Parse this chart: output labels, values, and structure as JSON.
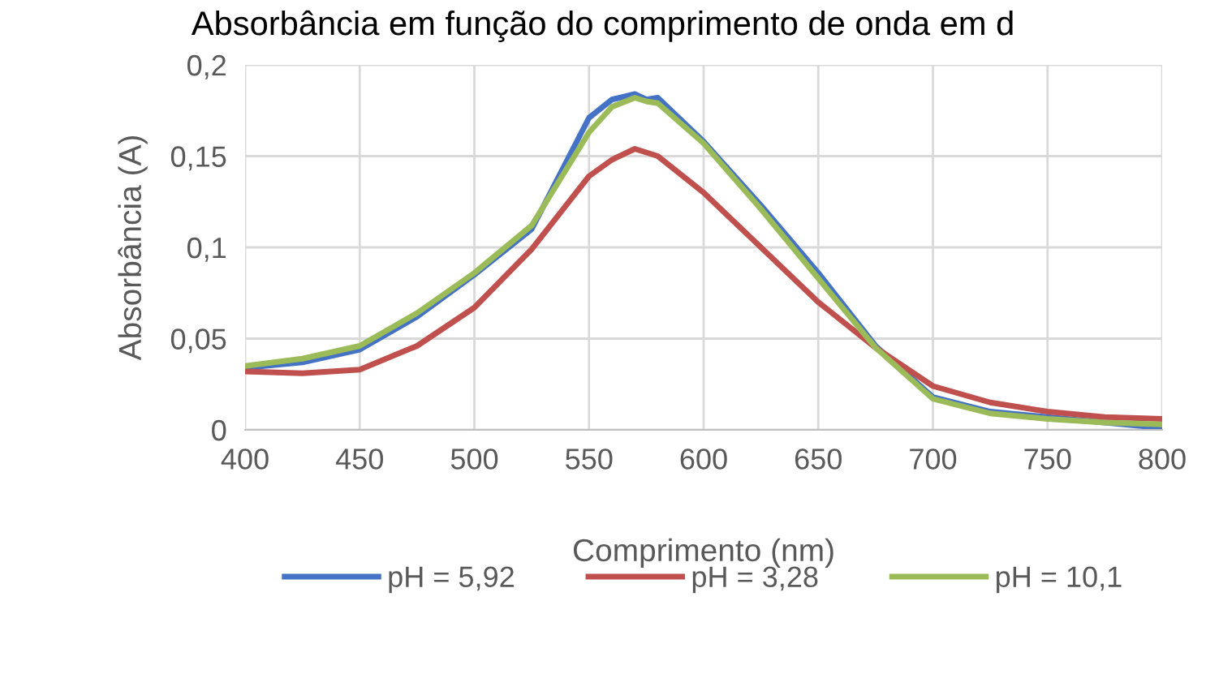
{
  "chart_data": {
    "type": "line",
    "title": "Absorbância em função do comprimento de onda em d",
    "xlabel": "Comprimento (nm)",
    "ylabel": "Absorbância (A)",
    "xlim": [
      400,
      800
    ],
    "xticks": [
      400,
      450,
      500,
      550,
      600,
      650,
      700,
      750,
      800
    ],
    "ylim": [
      0,
      0.2
    ],
    "yticks": [
      {
        "value": 0,
        "label": "0"
      },
      {
        "value": 0.05,
        "label": "0,05"
      },
      {
        "value": 0.1,
        "label": "0,1"
      },
      {
        "value": 0.15,
        "label": "0,15"
      },
      {
        "value": 0.2,
        "label": "0,2"
      }
    ],
    "grid": true,
    "legend": "bottom",
    "marker": "none",
    "line_style": "solid",
    "x": [
      400,
      425,
      450,
      475,
      500,
      525,
      550,
      560,
      570,
      575,
      580,
      600,
      625,
      650,
      675,
      700,
      725,
      750,
      775,
      800
    ],
    "series": [
      {
        "name": "pH = 5,92",
        "color": "#4472c4",
        "values": [
          0.034,
          0.037,
          0.044,
          0.062,
          0.085,
          0.11,
          0.171,
          0.181,
          0.184,
          0.181,
          0.182,
          0.158,
          0.123,
          0.086,
          0.046,
          0.018,
          0.01,
          0.007,
          0.004,
          0.001
        ]
      },
      {
        "name": "pH = 3,28",
        "color": "#c0504d",
        "values": [
          0.032,
          0.031,
          0.033,
          0.046,
          0.067,
          0.099,
          0.139,
          0.148,
          0.154,
          0.152,
          0.15,
          0.13,
          0.1,
          0.07,
          0.045,
          0.024,
          0.015,
          0.01,
          0.007,
          0.006
        ]
      },
      {
        "name": "pH = 10,1",
        "color": "#9bbb59",
        "values": [
          0.035,
          0.039,
          0.046,
          0.064,
          0.086,
          0.112,
          0.163,
          0.177,
          0.182,
          0.18,
          0.179,
          0.157,
          0.121,
          0.083,
          0.045,
          0.017,
          0.009,
          0.006,
          0.004,
          0.003
        ]
      }
    ]
  }
}
